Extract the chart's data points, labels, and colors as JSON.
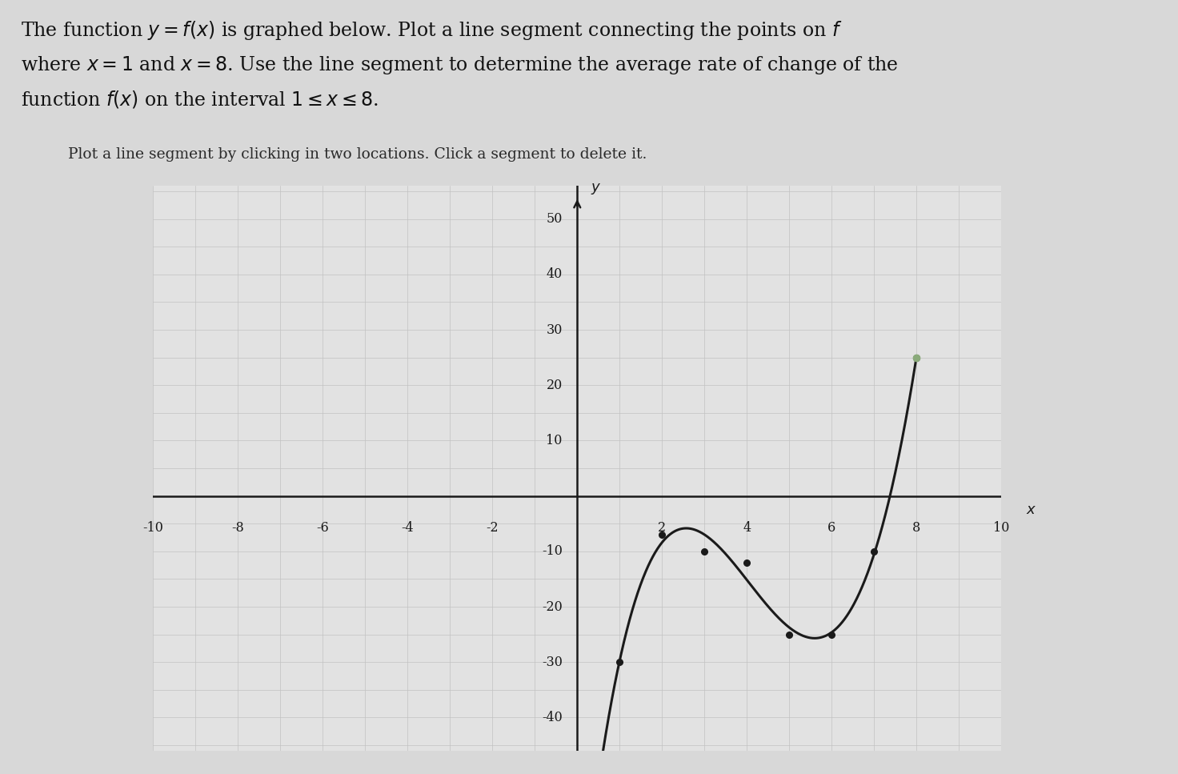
{
  "bg_color": "#d8d8d8",
  "plot_bg_color": "#e2e2e2",
  "curve_color": "#1a1a1a",
  "dot_color": "#1a1a1a",
  "special_dot_color": "#8aaa7a",
  "axis_color": "#1a1a1a",
  "grid_color": "#c2c2c2",
  "xlim": [
    -10,
    10
  ],
  "ylim": [
    -46,
    56
  ],
  "xtick_vals": [
    -10,
    -8,
    -6,
    -4,
    -2,
    2,
    4,
    6,
    8,
    10
  ],
  "ytick_vals": [
    -40,
    -30,
    -20,
    -10,
    10,
    20,
    30,
    40,
    50
  ],
  "dot_points_x": [
    1,
    2,
    3,
    4,
    5,
    6,
    7,
    8
  ],
  "dot_points_y": [
    -30,
    -7,
    -10,
    -12,
    -25,
    -25,
    -10,
    25
  ],
  "special_dot_x": 8,
  "special_dot_y": 25,
  "title_line1": "The function $y = f(x)$ is graphed below. Plot a line segment connecting the points on $f$",
  "title_line2": "where $x = 1$ and $x = 8$. Use the line segment to determine the average rate of change of the",
  "title_line3": "function $f(x)$ on the interval $1 \\leq x \\leq 8$.",
  "subtitle": "Plot a line segment by clicking in two locations. Click a segment to delete it.",
  "title_fontsize": 17,
  "subtitle_fontsize": 13.5,
  "tick_fontsize": 11.5,
  "label_fontsize": 13
}
